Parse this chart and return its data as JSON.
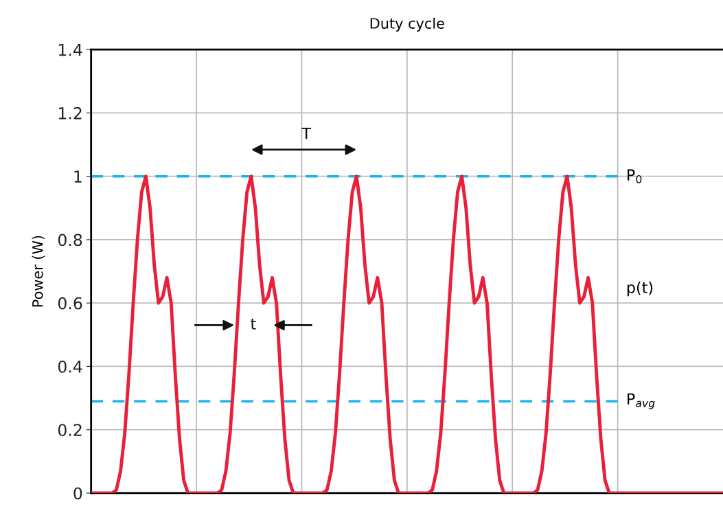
{
  "chart_data": {
    "type": "line",
    "title": "Duty cycle",
    "ylabel": "Power (W)",
    "categories": [
      null,
      null,
      null,
      null,
      null,
      null,
      null,
      null,
      null,
      null,
      null,
      null,
      null,
      null,
      null,
      null,
      null,
      null,
      null,
      null,
      null,
      null,
      null,
      null,
      null,
      null,
      null,
      null,
      null,
      null,
      null,
      null,
      null,
      null,
      null,
      null,
      null,
      null,
      null,
      null,
      null,
      null,
      null,
      null,
      null,
      null,
      null,
      null,
      null,
      null,
      null,
      null,
      null,
      null,
      null,
      null,
      null,
      null,
      null,
      null,
      null,
      null,
      null,
      null,
      null,
      null,
      null,
      null,
      null,
      null,
      null,
      null,
      null,
      null,
      null,
      null,
      null,
      null,
      null,
      null,
      null,
      null,
      null,
      null,
      null,
      null,
      null,
      null,
      null,
      null,
      null,
      null,
      null,
      null,
      null,
      null,
      null,
      null,
      null,
      null,
      null,
      null,
      null,
      null,
      null,
      null,
      null,
      null,
      null,
      null,
      null,
      null,
      null,
      null,
      null,
      null,
      null,
      null,
      null,
      null,
      null,
      null,
      null,
      null,
      null,
      null,
      null,
      null,
      null,
      null,
      null,
      null,
      null,
      null,
      null,
      null,
      null,
      null,
      null,
      null,
      null,
      null,
      null,
      null,
      null,
      null,
      null,
      null,
      null,
      null,
      null
    ],
    "ylim": [
      0,
      1.4
    ],
    "yticks": [
      0,
      0.2,
      0.4,
      0.6,
      0.8,
      1,
      1.2,
      1.4
    ],
    "tick_labels": "y",
    "grid": true,
    "line_style": "solid",
    "series": [
      {
        "color": "#e8203a",
        "values": [
          0,
          0,
          0,
          0,
          0,
          0,
          0.01,
          0.07,
          0.19,
          0.38,
          0.6,
          0.8,
          0.95,
          1.0,
          0.9,
          0.72,
          0.6,
          0.62,
          0.68,
          0.6,
          0.37,
          0.17,
          0.04,
          0,
          0,
          0,
          0,
          0,
          0,
          0,
          0,
          0.01,
          0.07,
          0.19,
          0.38,
          0.6,
          0.8,
          0.95,
          1.0,
          0.9,
          0.72,
          0.6,
          0.62,
          0.68,
          0.6,
          0.37,
          0.17,
          0.04,
          0,
          0,
          0,
          0,
          0,
          0,
          0,
          0,
          0.01,
          0.07,
          0.19,
          0.38,
          0.6,
          0.8,
          0.95,
          1.0,
          0.9,
          0.72,
          0.6,
          0.62,
          0.68,
          0.6,
          0.37,
          0.17,
          0.04,
          0,
          0,
          0,
          0,
          0,
          0,
          0,
          0,
          0.01,
          0.07,
          0.19,
          0.38,
          0.6,
          0.8,
          0.95,
          1.0,
          0.9,
          0.72,
          0.6,
          0.62,
          0.68,
          0.6,
          0.37,
          0.17,
          0.04,
          0,
          0,
          0,
          0,
          0,
          0,
          0,
          0,
          0.01,
          0.07,
          0.19,
          0.38,
          0.6,
          0.8,
          0.95,
          1.0,
          0.9,
          0.72,
          0.6,
          0.62,
          0.68,
          0.6,
          0.37,
          0.17,
          0.04,
          0,
          0,
          0,
          0,
          0,
          0,
          0,
          0,
          0,
          0,
          0,
          0,
          0,
          0,
          0,
          0,
          0,
          0,
          0,
          0,
          0,
          0,
          0,
          0,
          0,
          0,
          0,
          0
        ]
      }
    ],
    "ref_lines": [
      {
        "axis": "y",
        "value": 1.0,
        "label": "P$_{0}$",
        "color": "#1ab4ea",
        "line_style": "dashed"
      },
      {
        "axis": "y",
        "value": 0.29,
        "label": "P$_{avg}$",
        "color": "#1ab4ea",
        "line_style": "dashed"
      }
    ],
    "annotations": [
      "T",
      "t",
      "p(t)"
    ]
  }
}
